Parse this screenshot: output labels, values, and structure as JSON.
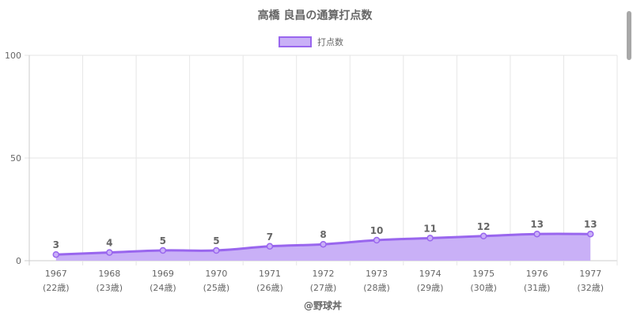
{
  "chart_data": {
    "type": "area",
    "title": "高橋 良昌の通算打点数",
    "categories": [
      "1967",
      "1968",
      "1969",
      "1970",
      "1971",
      "1972",
      "1973",
      "1974",
      "1975",
      "1976",
      "1977"
    ],
    "category_sublabels": [
      "(22歳)",
      "(23歳)",
      "(24歳)",
      "(25歳)",
      "(26歳)",
      "(27歳)",
      "(28歳)",
      "(29歳)",
      "(30歳)",
      "(31歳)",
      "(32歳)"
    ],
    "series": [
      {
        "name": "打点数",
        "values": [
          3,
          4,
          5,
          5,
          7,
          8,
          10,
          11,
          12,
          13,
          13
        ]
      }
    ],
    "ylim": [
      0,
      100
    ],
    "yticks": [
      0,
      50,
      100
    ],
    "grid": true,
    "legend_position": "top",
    "colors": {
      "line": "#9966ee",
      "fill": "#c9b0f7",
      "grid": "#e6e6e6",
      "axis": "#cccccc",
      "text": "#666666"
    }
  },
  "credit": "@野球丼"
}
